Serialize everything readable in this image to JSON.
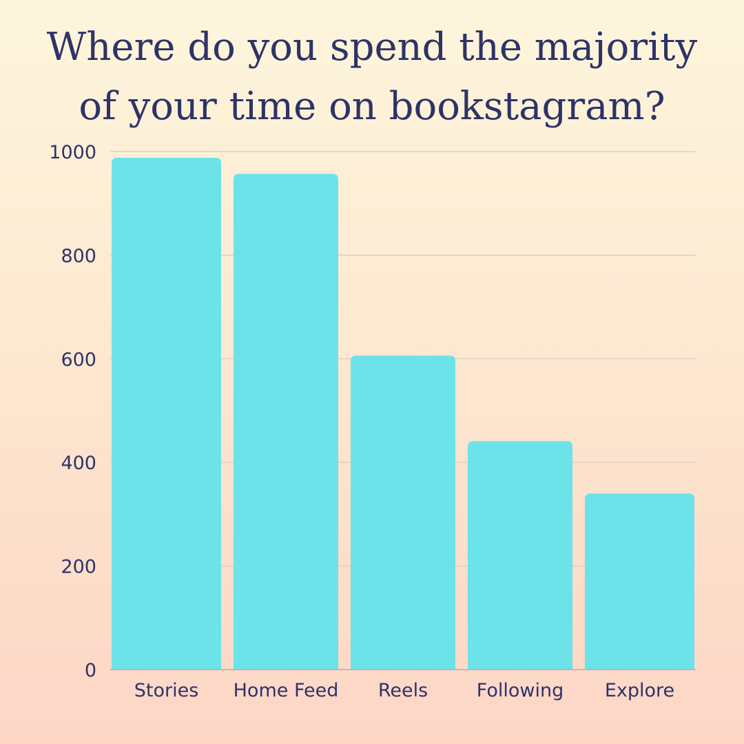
{
  "chart_data": {
    "type": "bar",
    "title": "Where do you spend the majority of your time on bookstagram?",
    "categories": [
      "Stories",
      "Home Feed",
      "Reels",
      "Following",
      "Explore"
    ],
    "values": [
      988,
      957,
      606,
      441,
      340
    ],
    "ylim": [
      0,
      1000
    ],
    "yticks": [
      0,
      200,
      400,
      600,
      800,
      1000
    ],
    "xlabel": "",
    "ylabel": "",
    "grid": true,
    "bar_color": "#6be3e8",
    "text_color": "#2e3367"
  }
}
